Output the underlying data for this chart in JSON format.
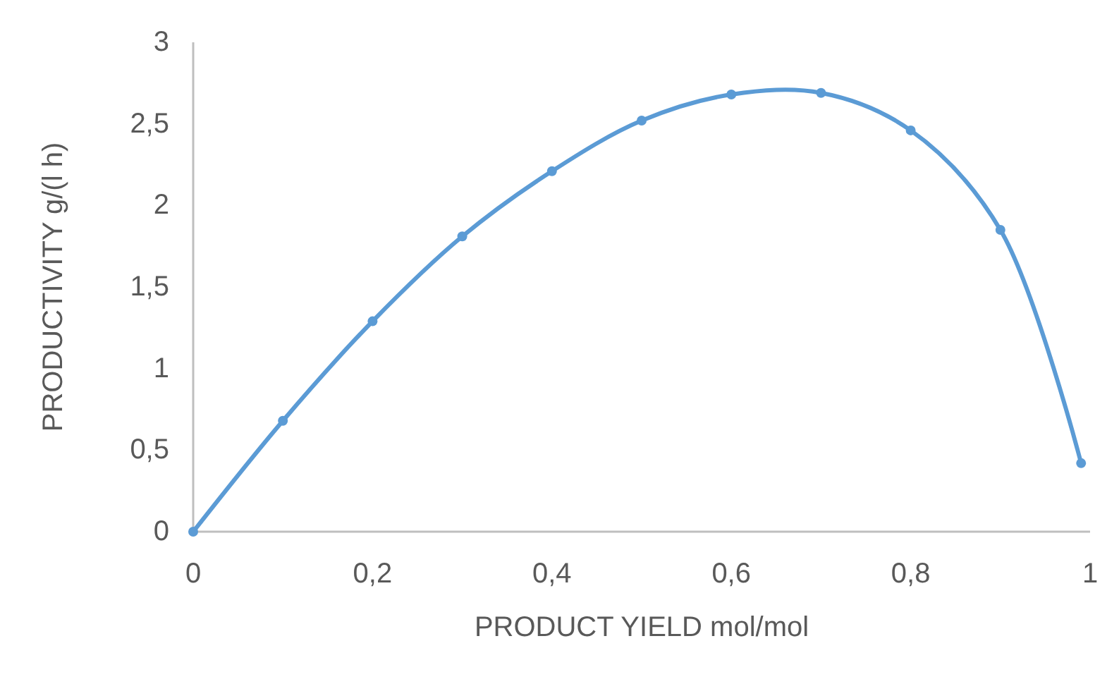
{
  "chart_data": {
    "type": "line",
    "xlabel": "PRODUCT YIELD mol/mol",
    "ylabel": "PRODUCTIVITY g/(l h)",
    "x": [
      0,
      0.1,
      0.2,
      0.3,
      0.4,
      0.5,
      0.6,
      0.7,
      0.8,
      0.9,
      0.99
    ],
    "series": [
      {
        "color": "#5b9bd5",
        "values": [
          0,
          0.68,
          1.29,
          1.81,
          2.21,
          2.52,
          2.68,
          2.69,
          2.46,
          1.85,
          0.42
        ]
      }
    ],
    "xlim": [
      0,
      1
    ],
    "xticks": [
      0,
      {
        "value": 0.2,
        "label": "0,2"
      },
      {
        "value": 0.4,
        "label": "0,4"
      },
      {
        "value": 0.6,
        "label": "0,6"
      },
      {
        "value": 0.8,
        "label": "0,8"
      },
      1
    ],
    "ylim": [
      0,
      3
    ],
    "yticks": [
      0,
      {
        "value": 0.5,
        "label": "0,5"
      },
      1,
      {
        "value": 1.5,
        "label": "1,5"
      },
      2,
      {
        "value": 2.5,
        "label": "2,5"
      },
      3
    ],
    "grid": false,
    "marker": "circle",
    "line_style": "solid"
  }
}
